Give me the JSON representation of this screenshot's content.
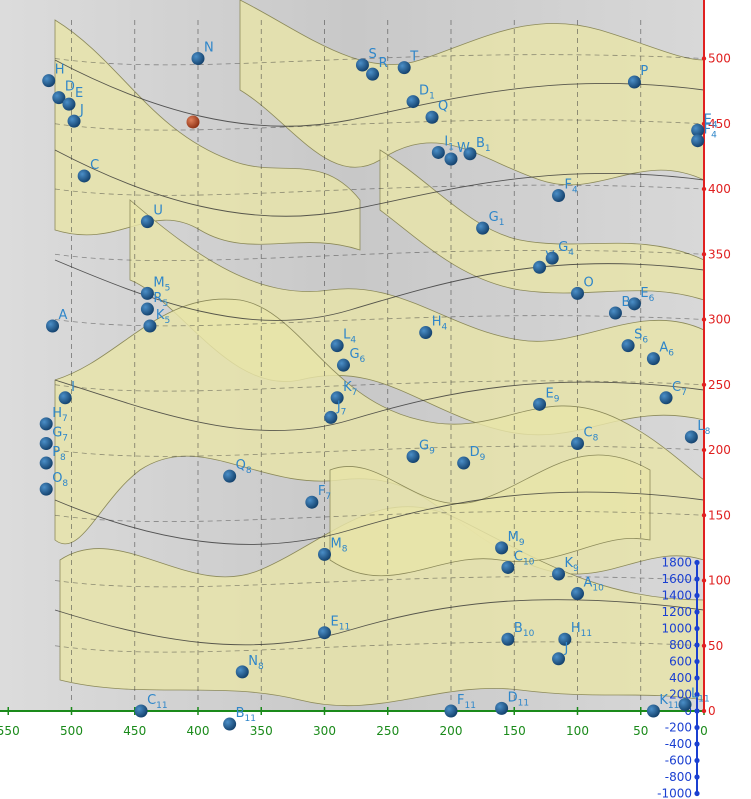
{
  "chart_data": {
    "type": "scatter",
    "title": "",
    "xlabel": "",
    "ylabel": "",
    "zlabel": "",
    "x_axis": {
      "direction": "reversed",
      "ticks": [
        550,
        500,
        450,
        400,
        350,
        300,
        250,
        200,
        150,
        100,
        50,
        0
      ],
      "color": "#1a8a1a"
    },
    "y_axis": {
      "ticks": [
        500,
        450,
        400,
        350,
        300,
        250,
        200,
        150,
        100,
        50,
        0
      ],
      "color": "#e02020"
    },
    "z_axis": {
      "ticks": [
        1800,
        1600,
        1400,
        1200,
        1000,
        800,
        600,
        400,
        200,
        0,
        -200,
        -400,
        -600,
        -800,
        -1000
      ],
      "color": "#1a3fd1"
    },
    "surface_color": "#e8e4a8",
    "point_color": "#1f5f96",
    "highlight_point_color": "#c0502a",
    "points": [
      {
        "label": "N",
        "x": 400,
        "y": 500
      },
      {
        "label": "S",
        "x": 270,
        "y": 495
      },
      {
        "label": "R",
        "x": 262,
        "y": 488
      },
      {
        "label": "T",
        "x": 237,
        "y": 493
      },
      {
        "label": "H",
        "x": 518,
        "y": 483
      },
      {
        "label": "D",
        "x": 510,
        "y": 470
      },
      {
        "label": "E",
        "x": 502,
        "y": 465
      },
      {
        "label": "J",
        "x": 498,
        "y": 452
      },
      {
        "label": "P",
        "x": 55,
        "y": 482
      },
      {
        "label": "D1",
        "x": 230,
        "y": 467
      },
      {
        "label": "Q",
        "x": 215,
        "y": 455
      },
      {
        "label": "I1",
        "x": 210,
        "y": 428
      },
      {
        "label": "W",
        "x": 200,
        "y": 423
      },
      {
        "label": "B1",
        "x": 185,
        "y": 427
      },
      {
        "label": "E4",
        "x": 5,
        "y": 445
      },
      {
        "label": "F4",
        "x": 5,
        "y": 437
      },
      {
        "label": "C",
        "x": 490,
        "y": 410
      },
      {
        "label": "U",
        "x": 440,
        "y": 375
      },
      {
        "label": "V",
        "x": 130,
        "y": 340
      },
      {
        "label": "G4",
        "x": 120,
        "y": 347
      },
      {
        "label": "F4",
        "x": 115,
        "y": 395
      },
      {
        "label": "G1",
        "x": 175,
        "y": 370
      },
      {
        "label": "O",
        "x": 100,
        "y": 320
      },
      {
        "label": "B6",
        "x": 70,
        "y": 305
      },
      {
        "label": "E6",
        "x": 55,
        "y": 312
      },
      {
        "label": "S6",
        "x": 60,
        "y": 280
      },
      {
        "label": "A",
        "x": 515,
        "y": 295
      },
      {
        "label": "M5",
        "x": 440,
        "y": 320
      },
      {
        "label": "R5",
        "x": 440,
        "y": 308
      },
      {
        "label": "K5",
        "x": 438,
        "y": 295
      },
      {
        "label": "H4",
        "x": 220,
        "y": 290
      },
      {
        "label": "L4",
        "x": 290,
        "y": 280
      },
      {
        "label": "G6",
        "x": 285,
        "y": 265
      },
      {
        "label": "K7",
        "x": 290,
        "y": 240
      },
      {
        "label": "J7",
        "x": 295,
        "y": 225
      },
      {
        "label": "I",
        "x": 505,
        "y": 240
      },
      {
        "label": "H7",
        "x": 520,
        "y": 220
      },
      {
        "label": "G7",
        "x": 520,
        "y": 205
      },
      {
        "label": "P8",
        "x": 520,
        "y": 190
      },
      {
        "label": "O8",
        "x": 520,
        "y": 170
      },
      {
        "label": "Q8",
        "x": 375,
        "y": 180
      },
      {
        "label": "F7",
        "x": 310,
        "y": 160
      },
      {
        "label": "M8",
        "x": 300,
        "y": 120
      },
      {
        "label": "G9",
        "x": 230,
        "y": 195
      },
      {
        "label": "D9",
        "x": 190,
        "y": 190
      },
      {
        "label": "E11",
        "x": 300,
        "y": 60
      },
      {
        "label": "N8",
        "x": 365,
        "y": 30
      },
      {
        "label": "B10",
        "x": 155,
        "y": 55
      },
      {
        "label": "H11",
        "x": 110,
        "y": 55
      },
      {
        "label": "J",
        "x": 115,
        "y": 40
      },
      {
        "label": "A10",
        "x": 100,
        "y": 90
      },
      {
        "label": "K9",
        "x": 115,
        "y": 105
      },
      {
        "label": "C10",
        "x": 155,
        "y": 110
      },
      {
        "label": "M9",
        "x": 160,
        "y": 125
      },
      {
        "label": "C8",
        "x": 100,
        "y": 205
      },
      {
        "label": "E9",
        "x": 130,
        "y": 235
      },
      {
        "label": "C7",
        "x": 30,
        "y": 240
      },
      {
        "label": "L8",
        "x": 10,
        "y": 210
      },
      {
        "label": "A6",
        "x": 40,
        "y": 270
      },
      {
        "label": "C11",
        "x": 445,
        "y": 0
      },
      {
        "label": "B11",
        "x": 375,
        "y": -10
      },
      {
        "label": "F11",
        "x": 200,
        "y": 0
      },
      {
        "label": "D11",
        "x": 160,
        "y": 2
      },
      {
        "label": "K11",
        "x": 40,
        "y": 0
      },
      {
        "label": "L11",
        "x": 15,
        "y": 5
      }
    ]
  }
}
